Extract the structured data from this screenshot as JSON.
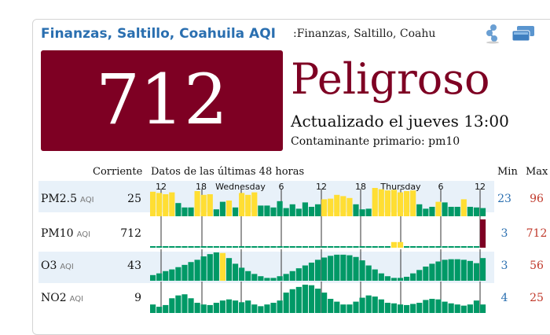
{
  "header": {
    "title": "Finanzas, Saltillo, Coahuila AQI",
    "subtitle": ":Finanzas, Saltillo, Coahu",
    "share_icon": "share-icon",
    "window_icon": "windows-icon"
  },
  "aqi": {
    "value": "712",
    "level": "Peligroso",
    "updated": "Actualizado el jueves 13:00",
    "primary": "Contaminante primario: pm10",
    "box_color": "#7e0023"
  },
  "table": {
    "col_current": "Corriente",
    "col_history": "Datos de las últimas 48 horas",
    "col_min": "Min",
    "col_max": "Max",
    "time_labels": [
      "12",
      "18",
      "Wednesday",
      "6",
      "12",
      "18",
      "Thursday",
      "6",
      "12"
    ],
    "colors": {
      "good": "#009966",
      "moderate": "#ffde33",
      "hazardous": "#7e0023"
    },
    "rows": [
      {
        "name": "PM2.5",
        "unit": "AQI",
        "current": "25",
        "min": "23",
        "max": "96",
        "values": [
          78,
          74,
          70,
          76,
          42,
          28,
          28,
          80,
          68,
          70,
          22,
          46,
          50,
          28,
          74,
          68,
          76,
          34,
          34,
          28,
          48,
          26,
          38,
          24,
          44,
          30,
          38,
          54,
          56,
          68,
          64,
          58,
          38,
          22,
          24,
          90,
          86,
          82,
          84,
          76,
          80,
          82,
          38,
          24,
          30,
          46,
          44,
          30,
          30,
          54,
          30,
          28,
          26
        ],
        "levels": [
          1,
          1,
          1,
          1,
          0,
          0,
          0,
          1,
          1,
          1,
          0,
          0,
          1,
          0,
          1,
          1,
          1,
          0,
          0,
          0,
          0,
          0,
          0,
          0,
          0,
          0,
          0,
          1,
          1,
          1,
          1,
          1,
          0,
          0,
          0,
          1,
          1,
          1,
          1,
          1,
          1,
          1,
          0,
          0,
          0,
          1,
          0,
          0,
          0,
          1,
          0,
          0,
          0
        ]
      },
      {
        "name": "PM10",
        "unit": "AQI",
        "current": "712",
        "min": "3",
        "max": "712",
        "values": [
          5,
          5,
          5,
          5,
          5,
          5,
          5,
          5,
          5,
          5,
          5,
          5,
          5,
          5,
          5,
          5,
          5,
          5,
          5,
          5,
          5,
          5,
          5,
          5,
          5,
          5,
          5,
          5,
          5,
          5,
          5,
          5,
          5,
          5,
          5,
          5,
          5,
          5,
          20,
          20,
          5,
          5,
          5,
          5,
          5,
          5,
          5,
          5,
          5,
          5,
          5,
          5,
          100
        ],
        "levels": [
          0,
          0,
          0,
          0,
          0,
          0,
          0,
          0,
          0,
          0,
          0,
          0,
          0,
          0,
          0,
          0,
          0,
          0,
          0,
          0,
          0,
          0,
          0,
          0,
          0,
          0,
          0,
          0,
          0,
          0,
          0,
          0,
          0,
          0,
          0,
          0,
          0,
          0,
          1,
          1,
          0,
          0,
          0,
          0,
          0,
          0,
          0,
          0,
          0,
          0,
          0,
          0,
          2
        ]
      },
      {
        "name": "O3",
        "unit": "AQI",
        "current": "43",
        "min": "3",
        "max": "56",
        "values": [
          20,
          26,
          34,
          40,
          48,
          56,
          66,
          74,
          86,
          94,
          100,
          98,
          80,
          60,
          46,
          34,
          24,
          16,
          10,
          10,
          16,
          24,
          34,
          44,
          54,
          64,
          74,
          82,
          88,
          92,
          92,
          90,
          84,
          72,
          54,
          40,
          26,
          16,
          10,
          10,
          14,
          26,
          38,
          50,
          60,
          68,
          74,
          76,
          76,
          74,
          70,
          62,
          80
        ],
        "levels": [
          0,
          0,
          0,
          0,
          0,
          0,
          0,
          0,
          0,
          0,
          0,
          1,
          0,
          0,
          0,
          0,
          0,
          0,
          0,
          0,
          0,
          0,
          0,
          0,
          0,
          0,
          0,
          0,
          0,
          0,
          0,
          0,
          0,
          0,
          0,
          0,
          0,
          0,
          0,
          0,
          0,
          0,
          0,
          0,
          0,
          0,
          0,
          0,
          0,
          0,
          0,
          0,
          0
        ]
      },
      {
        "name": "NO2",
        "unit": "AQI",
        "current": "9",
        "min": "4",
        "max": "25",
        "values": [
          30,
          22,
          28,
          52,
          62,
          66,
          52,
          36,
          30,
          28,
          36,
          44,
          48,
          44,
          38,
          44,
          30,
          24,
          30,
          36,
          44,
          72,
          84,
          92,
          100,
          98,
          86,
          72,
          50,
          40,
          30,
          30,
          40,
          54,
          62,
          58,
          48,
          36,
          34,
          30,
          28,
          32,
          36,
          46,
          50,
          48,
          40,
          34,
          30,
          26,
          30,
          44,
          30
        ],
        "levels": [
          0,
          0,
          0,
          0,
          0,
          0,
          0,
          0,
          0,
          0,
          0,
          0,
          0,
          0,
          0,
          0,
          0,
          0,
          0,
          0,
          0,
          0,
          0,
          0,
          0,
          0,
          0,
          0,
          0,
          0,
          0,
          0,
          0,
          0,
          0,
          0,
          0,
          0,
          0,
          0,
          0,
          0,
          0,
          0,
          0,
          0,
          0,
          0,
          0,
          0,
          0,
          0,
          0
        ]
      }
    ]
  }
}
